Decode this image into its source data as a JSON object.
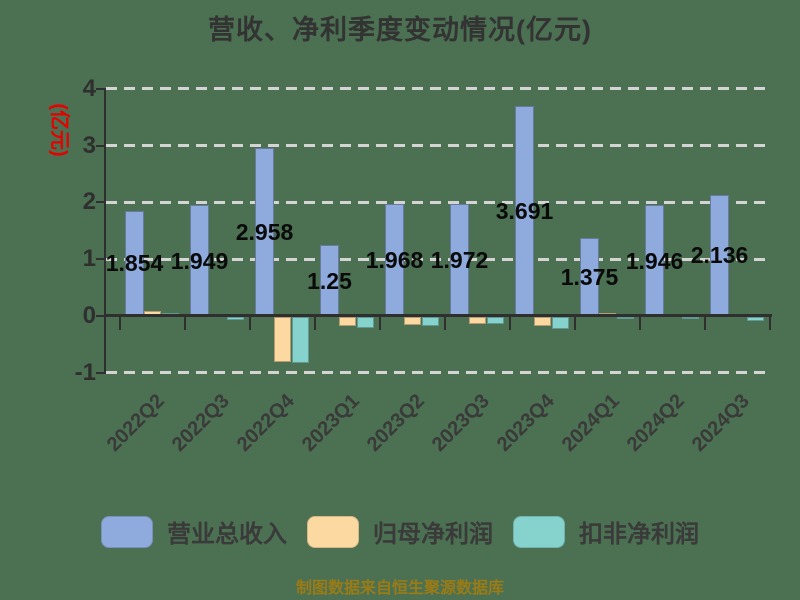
{
  "title": "营收、净利季度变动情况(亿元)",
  "chart_data": {
    "type": "bar",
    "title": "营收、净利季度变动情况(亿元)",
    "ylabel": "(亿元)",
    "xlabel": "",
    "ylim": [
      -1,
      4
    ],
    "yticks": [
      4,
      3,
      2,
      1,
      0,
      -1
    ],
    "ytick_labels": [
      "4",
      "3",
      "2",
      "1",
      "0",
      "-1"
    ],
    "grid": "horizontal-dashed",
    "legend_position": "bottom",
    "categories": [
      "2022Q2",
      "2022Q3",
      "2022Q4",
      "2023Q1",
      "2023Q2",
      "2023Q3",
      "2023Q4",
      "2024Q1",
      "2024Q2",
      "2024Q3"
    ],
    "series": [
      {
        "key": "revenue",
        "name": "营业总收入",
        "color": "#8faadc",
        "values": [
          1.854,
          1.949,
          2.958,
          1.25,
          1.968,
          1.972,
          3.691,
          1.375,
          1.946,
          2.136
        ],
        "labels": [
          "1.854",
          "1.949",
          "2.958",
          "1.25",
          "1.968",
          "1.972",
          "3.691",
          "1.375",
          "1.946",
          "2.136"
        ]
      },
      {
        "key": "net-profit",
        "name": "归母净利润",
        "color": "#fbd9a0",
        "values": [
          0.09,
          0.01,
          -0.79,
          -0.16,
          -0.14,
          -0.12,
          -0.16,
          0.05,
          0.01,
          0.01
        ]
      },
      {
        "key": "non-gaap-net-profit",
        "name": "扣非净利润",
        "color": "#86d3ce",
        "values": [
          0.05,
          -0.05,
          -0.81,
          -0.19,
          -0.16,
          -0.13,
          -0.22,
          -0.02,
          -0.03,
          -0.07
        ]
      }
    ],
    "footer": "制图数据来自恒生聚源数据库",
    "colors": {
      "background": "#4b7052",
      "axis": "#2f2f2f",
      "gridline": "#d4d4d4",
      "title": "#333333",
      "value_label": "#0a0a0a",
      "tick_label": "#2f2f2f",
      "ylabel": "#e60000",
      "footer": "#9a7b16"
    }
  }
}
